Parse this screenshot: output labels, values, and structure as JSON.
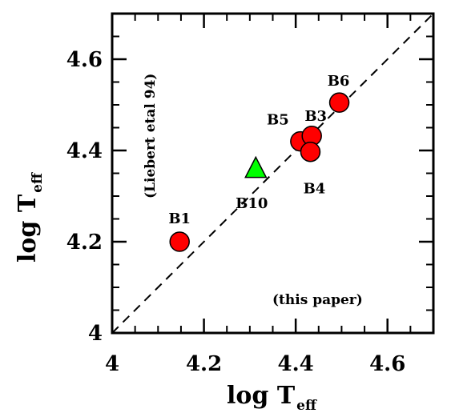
{
  "chart_data": {
    "type": "scatter",
    "title": "",
    "xlabel": {
      "main": "log T",
      "sub": "eff"
    },
    "ylabel": {
      "main": "log T",
      "sub": "eff"
    },
    "xlim": [
      4.0,
      4.7
    ],
    "ylim": [
      4.0,
      4.7
    ],
    "xticks": [
      {
        "value": 4.0,
        "label": "4"
      },
      {
        "value": 4.2,
        "label": "4.2"
      },
      {
        "value": 4.4,
        "label": "4.4"
      },
      {
        "value": 4.6,
        "label": "4.6"
      }
    ],
    "yticks": [
      {
        "value": 4.0,
        "label": "4"
      },
      {
        "value": 4.2,
        "label": "4.2"
      },
      {
        "value": 4.4,
        "label": "4.4"
      },
      {
        "value": 4.6,
        "label": "4.6"
      }
    ],
    "minor_tick_step": 0.05,
    "grid": false,
    "reference_line": {
      "style": "dashed",
      "from": [
        4.0,
        4.0
      ],
      "to": [
        4.7,
        4.7
      ]
    },
    "points": [
      {
        "label": "B1",
        "x": 4.147,
        "y": 4.2,
        "marker": "circle",
        "color": "#ff0000"
      },
      {
        "label": "B10",
        "x": 4.313,
        "y": 4.36,
        "marker": "triangle",
        "color": "#00ff00"
      },
      {
        "label": "B5",
        "x": 4.41,
        "y": 4.42,
        "marker": "circle",
        "color": "#ff0000"
      },
      {
        "label": "B3",
        "x": 4.435,
        "y": 4.432,
        "marker": "circle",
        "color": "#ff0000"
      },
      {
        "label": "B4",
        "x": 4.432,
        "y": 4.397,
        "marker": "circle",
        "color": "#ff0000"
      },
      {
        "label": "B6",
        "x": 4.495,
        "y": 4.505,
        "marker": "circle",
        "color": "#ff0000"
      }
    ],
    "annotations": {
      "y_axis_source": "(Liebert etal 94)",
      "x_axis_source": "(this paper)"
    }
  }
}
